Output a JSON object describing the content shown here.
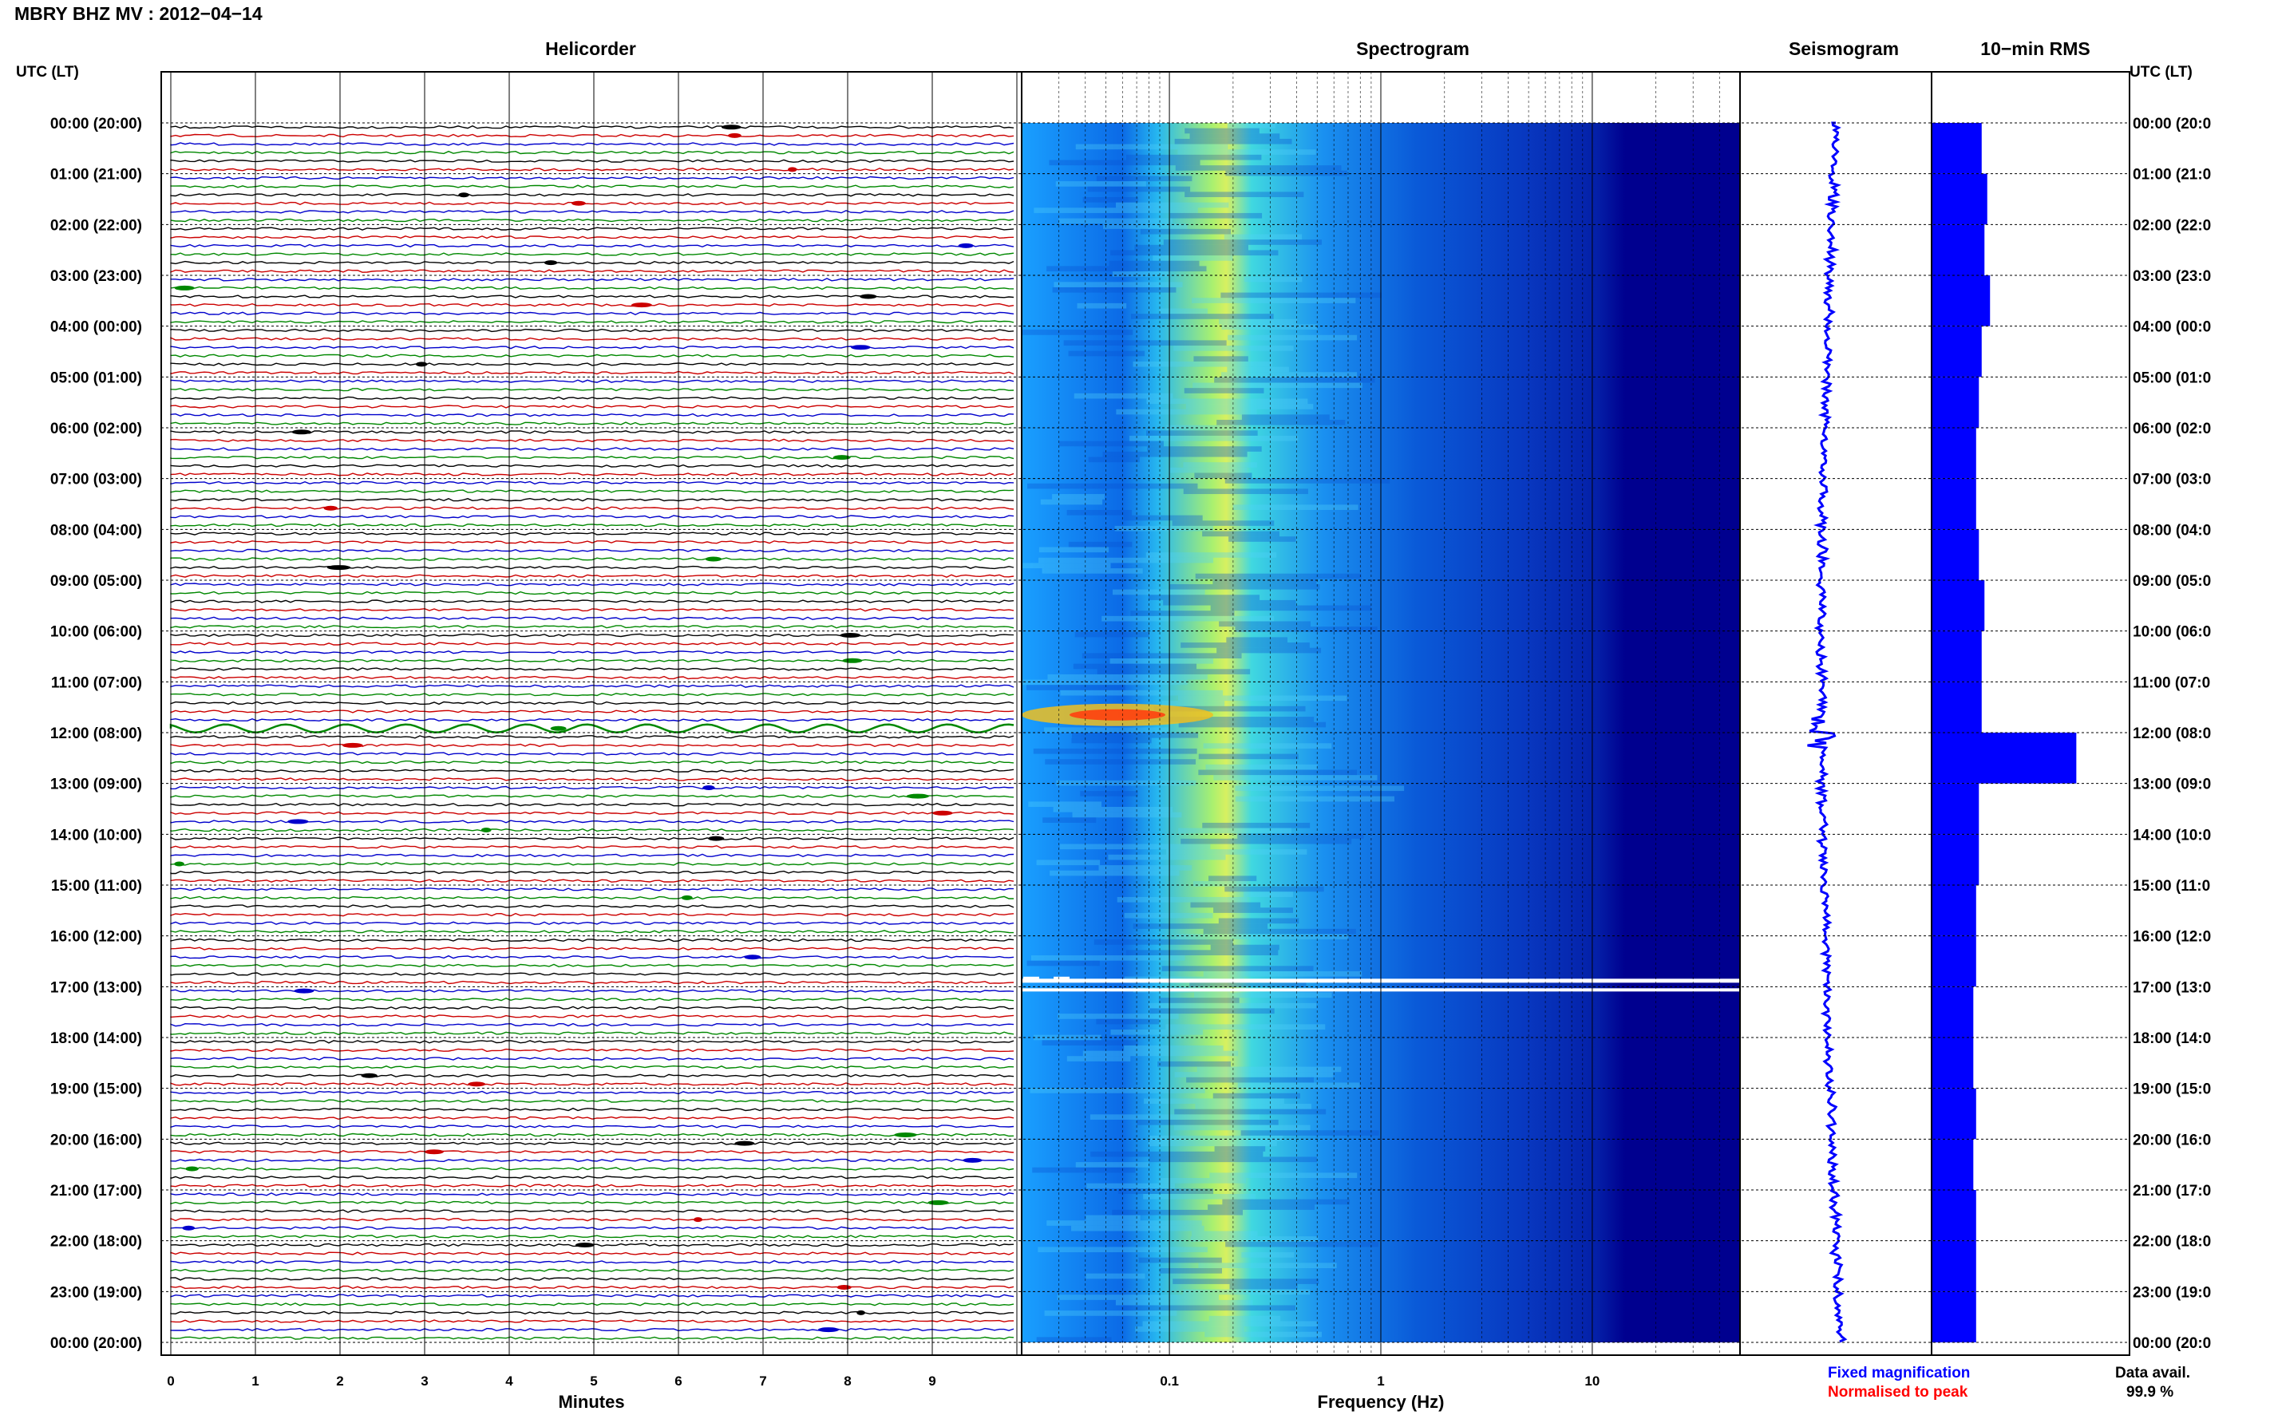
{
  "header": {
    "title": "MBRY BHZ MV : 2012−04−14"
  },
  "panels": {
    "helicorder": "Helicorder",
    "spectrogram": "Spectrogram",
    "seismogram": "Seismogram",
    "rms": "10−min RMS"
  },
  "axes": {
    "left_col_label": "UTC (LT)",
    "right_col_label": "UTC (LT)",
    "x_minutes_label": "Minutes",
    "x_frequency_label": "Frequency (Hz)",
    "minute_ticks": [
      "0",
      "1",
      "2",
      "3",
      "4",
      "5",
      "6",
      "7",
      "8",
      "9"
    ],
    "frequency_ticks": [
      "0.1",
      "1",
      "10"
    ]
  },
  "legend": {
    "fixed": "Fixed magnification",
    "normalised": "Normalised to peak",
    "fixed_color": "#0000ff",
    "normalised_color": "#ff0000"
  },
  "data_avail": {
    "label": "Data avail.",
    "value": "99.9 %"
  },
  "colors": {
    "trace_cycle": [
      "#000000",
      "#cc0000",
      "#0000cc",
      "#008800"
    ],
    "spectrogram_base": "#00008f",
    "rms_bar": "#0000ff"
  },
  "chart_data": {
    "type": "heatmap",
    "time_labels_left": [
      "00:00 (20:00)",
      "01:00 (21:00)",
      "02:00 (22:00)",
      "03:00 (23:00)",
      "04:00 (00:00)",
      "05:00 (01:00)",
      "06:00 (02:00)",
      "07:00 (03:00)",
      "08:00 (04:00)",
      "09:00 (05:00)",
      "10:00 (06:00)",
      "11:00 (07:00)",
      "12:00 (08:00)",
      "13:00 (09:00)",
      "14:00 (10:00)",
      "15:00 (11:00)",
      "16:00 (12:00)",
      "17:00 (13:00)",
      "18:00 (14:00)",
      "19:00 (15:00)",
      "20:00 (16:00)",
      "21:00 (17:00)",
      "22:00 (18:00)",
      "23:00 (19:00)",
      "00:00 (20:00)"
    ],
    "time_labels_right": [
      "00:00 (20:0",
      "01:00 (21:0",
      "02:00 (22:0",
      "03:00 (23:0",
      "04:00 (00:0",
      "05:00 (01:0",
      "06:00 (02:0",
      "07:00 (03:0",
      "08:00 (04:0",
      "09:00 (05:0",
      "10:00 (06:0",
      "11:00 (07:0",
      "12:00 (08:0",
      "13:00 (09:0",
      "14:00 (10:0",
      "15:00 (11:0",
      "16:00 (12:0",
      "17:00 (13:0",
      "18:00 (14:0",
      "19:00 (15:0",
      "20:00 (16:0",
      "21:00 (17:0",
      "22:00 (18:0",
      "23:00 (19:0",
      "00:00 (20:0"
    ],
    "minutes_range": [
      0,
      10
    ],
    "frequency_range_hz": [
      0.02,
      50
    ],
    "frequency_scale": "log",
    "rms_hourly": [
      0.9,
      1.0,
      0.95,
      1.05,
      0.9,
      0.85,
      0.8,
      0.8,
      0.85,
      0.95,
      0.9,
      0.9,
      2.6,
      0.85,
      0.85,
      0.8,
      0.8,
      0.75,
      0.75,
      0.8,
      0.75,
      0.8,
      0.8,
      0.8
    ],
    "event_hour": 12,
    "gap_hour": 17
  }
}
